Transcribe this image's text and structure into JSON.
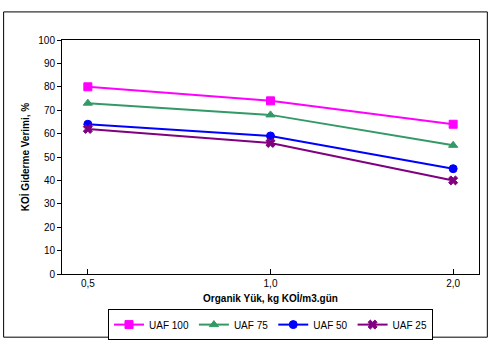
{
  "chart_data": {
    "type": "line",
    "x_label": "Organik Yük, kg KOİ/m3.gün",
    "y_label": "KOİ Giderme Verimi, %",
    "categories": [
      "0,5",
      "1,0",
      "2,0"
    ],
    "series": [
      {
        "name": "UAF 100",
        "color": "#ff00ff",
        "marker": "square",
        "values": [
          80,
          74,
          64
        ]
      },
      {
        "name": "UAF 75",
        "color": "#339966",
        "marker": "triangle",
        "values": [
          73,
          68,
          55
        ]
      },
      {
        "name": "UAF 50",
        "color": "#0000ff",
        "marker": "circle",
        "values": [
          64,
          59,
          45
        ]
      },
      {
        "name": "UAF 25",
        "color": "#800080",
        "marker": "x",
        "values": [
          62,
          56,
          40
        ]
      }
    ],
    "ylim": [
      0,
      100
    ],
    "yticks": [
      0,
      10,
      20,
      30,
      40,
      50,
      60,
      70,
      80,
      90,
      100
    ],
    "grid": false,
    "legend": "bottom"
  }
}
